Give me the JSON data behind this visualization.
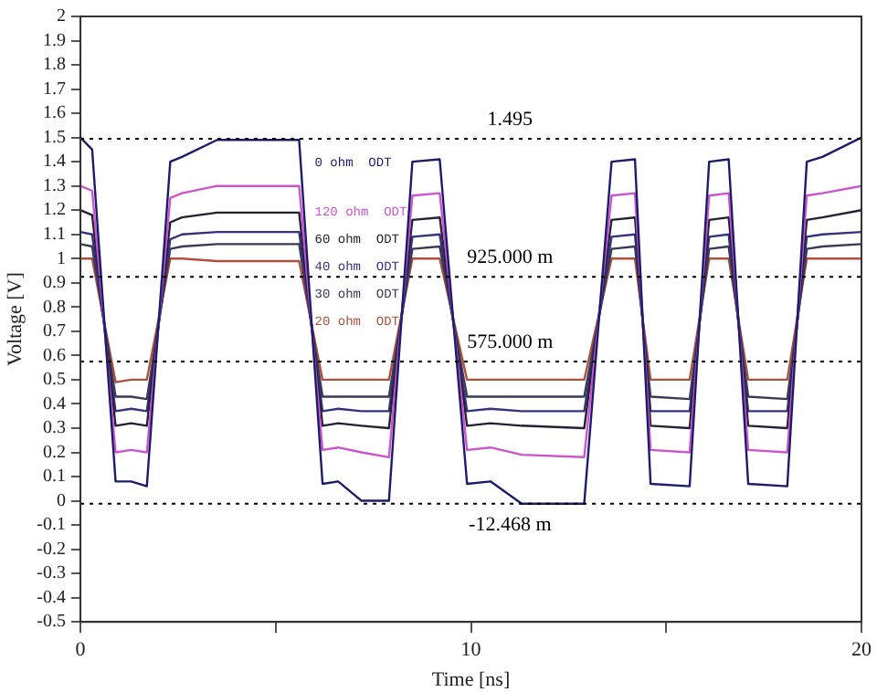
{
  "chart_data": {
    "type": "line",
    "xlabel": "Time [ns]",
    "ylabel": "Voltage [V]",
    "x": [
      0,
      0.3,
      0.9,
      1.3,
      1.7,
      2.3,
      2.6,
      3.5,
      5.6,
      6.2,
      6.6,
      7.2,
      7.9,
      8.5,
      9.2,
      9.9,
      10.5,
      11.3,
      12.9,
      13.6,
      14.2,
      14.6,
      15.6,
      16.1,
      16.6,
      17.1,
      18.1,
      18.6,
      19.0,
      20
    ],
    "series": [
      {
        "name": "0 ohm  ODT",
        "color": "#1c1c6e",
        "values": [
          1.5,
          1.45,
          0.08,
          0.08,
          0.06,
          1.4,
          1.42,
          1.49,
          1.49,
          0.07,
          0.08,
          0,
          0,
          1.4,
          1.41,
          0.07,
          0.08,
          -0.012,
          -0.012,
          1.4,
          1.41,
          0.07,
          0.06,
          1.4,
          1.41,
          0.07,
          0.06,
          1.4,
          1.42,
          1.5
        ]
      },
      {
        "name": "120 ohm  ODT",
        "color": "#cc55cc",
        "values": [
          1.3,
          1.28,
          0.2,
          0.21,
          0.2,
          1.25,
          1.27,
          1.3,
          1.3,
          0.21,
          0.22,
          0.2,
          0.18,
          1.26,
          1.27,
          0.21,
          0.22,
          0.19,
          0.18,
          1.26,
          1.27,
          0.21,
          0.2,
          1.26,
          1.27,
          0.21,
          0.2,
          1.26,
          1.27,
          1.3
        ]
      },
      {
        "name": "60 ohm  ODT",
        "color": "#222233",
        "values": [
          1.2,
          1.18,
          0.31,
          0.32,
          0.31,
          1.15,
          1.17,
          1.19,
          1.19,
          0.31,
          0.32,
          0.31,
          0.3,
          1.16,
          1.17,
          0.31,
          0.32,
          0.31,
          0.3,
          1.16,
          1.17,
          0.31,
          0.3,
          1.16,
          1.17,
          0.31,
          0.3,
          1.16,
          1.17,
          1.2
        ]
      },
      {
        "name": "40 ohm  ODT",
        "color": "#33337f",
        "values": [
          1.11,
          1.1,
          0.37,
          0.38,
          0.37,
          1.08,
          1.1,
          1.11,
          1.11,
          0.37,
          0.38,
          0.37,
          0.37,
          1.09,
          1.1,
          0.37,
          0.38,
          0.37,
          0.37,
          1.09,
          1.1,
          0.37,
          0.37,
          1.09,
          1.1,
          0.37,
          0.37,
          1.09,
          1.1,
          1.11
        ]
      },
      {
        "name": "30 ohm  ODT",
        "color": "#3a3a55",
        "values": [
          1.06,
          1.05,
          0.43,
          0.43,
          0.42,
          1.04,
          1.05,
          1.06,
          1.06,
          0.43,
          0.43,
          0.43,
          0.43,
          1.04,
          1.05,
          0.43,
          0.43,
          0.43,
          0.43,
          1.04,
          1.05,
          0.43,
          0.42,
          1.04,
          1.05,
          0.43,
          0.42,
          1.04,
          1.05,
          1.06
        ]
      },
      {
        "name": "20 ohm  ODT",
        "color": "#b0503c",
        "values": [
          1.0,
          1.0,
          0.49,
          0.5,
          0.5,
          1.0,
          1.0,
          0.99,
          0.99,
          0.5,
          0.5,
          0.5,
          0.5,
          1.0,
          1.0,
          0.5,
          0.5,
          0.5,
          0.5,
          1.0,
          1.0,
          0.5,
          0.5,
          1.0,
          1.0,
          0.5,
          0.5,
          1.0,
          1.0,
          1.0
        ]
      }
    ],
    "xlim": [
      0,
      20
    ],
    "xticks": [
      0,
      {
        "value": 5,
        "label": null
      },
      10,
      {
        "value": 15,
        "label": null
      },
      20
    ],
    "ylim": [
      -0.5,
      2
    ],
    "yticks": [
      -0.5,
      -0.4,
      -0.3,
      -0.2,
      -0.1,
      0,
      0.1,
      0.2,
      0.3,
      0.4,
      0.5,
      0.6,
      0.7,
      0.8,
      0.9,
      1,
      1.1,
      1.2,
      1.3,
      1.4,
      1.5,
      1.6,
      1.7,
      1.8,
      1.9,
      2
    ],
    "ref_lines": [
      {
        "axis": "y",
        "value": 1.495,
        "label": "1.495",
        "color": "#000000",
        "line_style": "dotted"
      },
      {
        "axis": "y",
        "value": 0.925,
        "label": "925.000 m",
        "color": "#000000",
        "line_style": "dotted"
      },
      {
        "axis": "y",
        "value": 0.575,
        "label": "575.000 m",
        "color": "#000000",
        "line_style": "dotted"
      },
      {
        "axis": "y",
        "value": -0.012468,
        "label": "-12.468 m",
        "color": "#000000",
        "line_style": "dotted"
      }
    ],
    "grid": false,
    "marker": "none",
    "line_style": "solid"
  }
}
